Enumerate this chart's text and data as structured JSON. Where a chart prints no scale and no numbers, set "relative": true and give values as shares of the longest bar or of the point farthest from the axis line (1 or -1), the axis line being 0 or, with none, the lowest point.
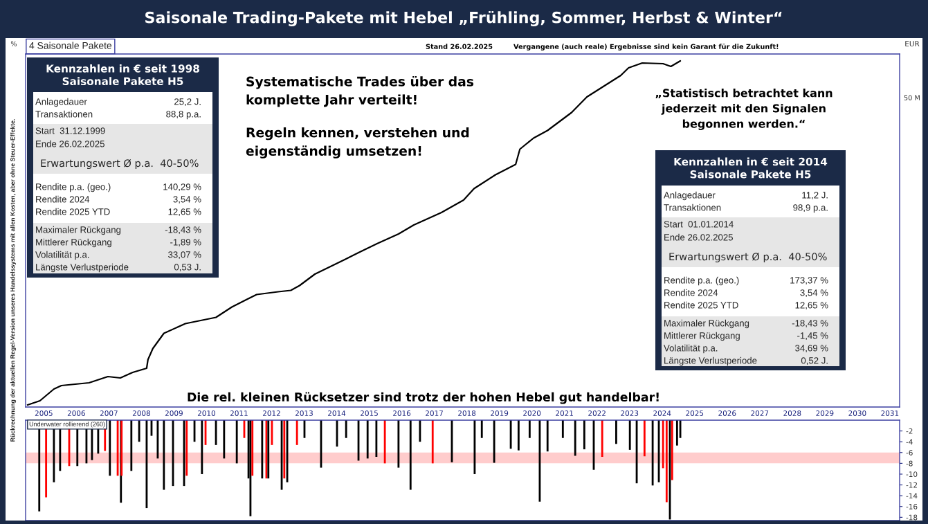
{
  "chart_data": [
    {
      "type": "line",
      "title": "Saisonale Trading-Pakete mit Hebel „Frühling, Sommer, Herbst & Winter“",
      "subtitle": "4 Saisonale Pakete",
      "ylabel": "Rückrechnung der aktuellen Regel-Version unseres Handelssystems mit allen Kosten, aber ohne Steuer-Effekte.",
      "relative": true,
      "tick_labels": "x",
      "xlim": [
        2004.94,
        2031.8
      ],
      "xticks": [
        {
          "value": 2005.5,
          "label": "2005"
        },
        {
          "value": 2006.5,
          "label": "2006"
        },
        {
          "value": 2007.5,
          "label": "2007"
        },
        {
          "value": 2008.5,
          "label": "2008"
        },
        {
          "value": 2009.5,
          "label": "2009"
        },
        {
          "value": 2010.5,
          "label": "2010"
        },
        {
          "value": 2011.5,
          "label": "2011"
        },
        {
          "value": 2012.5,
          "label": "2012"
        },
        {
          "value": 2013.5,
          "label": "2013"
        },
        {
          "value": 2014.5,
          "label": "2014"
        },
        {
          "value": 2015.5,
          "label": "2015"
        },
        {
          "value": 2016.5,
          "label": "2016"
        },
        {
          "value": 2017.5,
          "label": "2017"
        },
        {
          "value": 2018.5,
          "label": "2018"
        },
        {
          "value": 2019.5,
          "label": "2019"
        },
        {
          "value": 2020.5,
          "label": "2020"
        },
        {
          "value": 2021.5,
          "label": "2021"
        },
        {
          "value": 2022.5,
          "label": "2022"
        },
        {
          "value": 2023.5,
          "label": "2023"
        },
        {
          "value": 2024.5,
          "label": "2024"
        },
        {
          "value": 2025.5,
          "label": "2025"
        },
        {
          "value": 2026.5,
          "label": "2026"
        },
        {
          "value": 2027.5,
          "label": "2027"
        },
        {
          "value": 2028.5,
          "label": "2028"
        },
        {
          "value": 2029.5,
          "label": "2029"
        },
        {
          "value": 2030.5,
          "label": "2030"
        },
        {
          "value": 2031.5,
          "label": "2031"
        }
      ],
      "series": [
        {
          "color": "#000000",
          "x": [
            2005.0,
            2005.38,
            2005.81,
            2006.04,
            2006.89,
            2007.47,
            2007.85,
            2008.23,
            2008.66,
            2008.7,
            2008.85,
            2009.19,
            2009.85,
            2010.79,
            2011.28,
            2011.74,
            2012.04,
            2012.7,
            2013.09,
            2013.36,
            2013.83,
            2014.79,
            2015.17,
            2015.74,
            2016.4,
            2016.87,
            2017.72,
            2018.4,
            2018.72,
            2019.38,
            2020.0,
            2020.13,
            2020.55,
            2020.98,
            2021.72,
            2022.19,
            2022.66,
            2023.23,
            2023.47,
            2023.89,
            2024.53,
            2024.77,
            2025.06
          ],
          "values": [
            0.006,
            0.018,
            0.052,
            0.062,
            0.07,
            0.088,
            0.084,
            0.1,
            0.112,
            0.137,
            0.169,
            0.213,
            0.241,
            0.259,
            0.289,
            0.311,
            0.325,
            0.333,
            0.337,
            0.351,
            0.384,
            0.428,
            0.446,
            0.472,
            0.5,
            0.526,
            0.562,
            0.598,
            0.631,
            0.671,
            0.701,
            0.745,
            0.777,
            0.799,
            0.851,
            0.896,
            0.924,
            0.958,
            0.98,
            0.994,
            0.992,
            0.984,
            1.0
          ]
        }
      ],
      "annotations": [
        "Stand 26.02.2025",
        "Vergangene (auch reale) Ergebnisse sind kein Garant für die Zukunft!",
        "%",
        "EUR",
        "50 M",
        "Systematische Trades über das\nkomplette Jahr verteilt!",
        "Regeln kennen, verstehen und\neigenständig umsetzen!",
        "„Statistisch betrachtet kann\njederzeit mit den Signalen\nbegonnen werden.“",
        "Die rel. kleinen Rücksetzer sind trotz der hohen Hebel gut handelbar!",
        "Kennzahlen in € seit 1998\nSaisonale Pakete H5",
        "Anlagedauer",
        "25,2 J.",
        "Transaktionen",
        "88,8 p.a.",
        "Start  31.12.1999",
        "Ende 26.02.2025",
        "Erwartungswert Ø p.a.  40-50%",
        "Rendite p.a. (geo.)",
        "140,29 %",
        "Rendite 2024",
        "3,54 %",
        "Rendite 2025 YTD",
        "12,65 %",
        "Maximaler Rückgang",
        "-18,43 %",
        "Mittlerer Rückgang",
        "-1,89 %",
        "Volatilität p.a.",
        "33,07 %",
        "Längste Verlustperiode",
        "0,53 J.",
        "Kennzahlen in € seit 2014\nSaisonale Pakete H5",
        "Anlagedauer",
        "11,2 J.",
        "Transaktionen",
        "98,9 p.a.",
        "Start  01.01.2014",
        "Ende 26.02.2025",
        "Erwartungswert Ø p.a.  40-50%",
        "Rendite p.a. (geo.)",
        "173,37 %",
        "Rendite 2024",
        "3,54 %",
        "Rendite 2025 YTD",
        "12,65 %",
        "Maximaler Rückgang",
        "-18,43 %",
        "Mittlerer Rückgang",
        "-1,45 %",
        "Volatilität p.a.",
        "34,69 %",
        "Längste Verlustperiode",
        "0,52 J."
      ]
    },
    {
      "type": "bar",
      "tick_labels": "y",
      "xlim": [
        2004.94,
        2031.8
      ],
      "ylim": [
        -18.6,
        0
      ],
      "yticks": [
        -2,
        -4,
        -6,
        -8,
        -10,
        -12,
        -14,
        -16,
        -18
      ],
      "bands": [
        {
          "axis": "y",
          "from": -6,
          "to": -8,
          "color": "#ffcccc"
        }
      ],
      "annotations": [
        "Underwater rollierend (260)"
      ],
      "series": [
        {
          "x": [
            2005.36,
            2005.57,
            2005.81,
            2006.0,
            2006.28,
            2006.53,
            2006.81,
            2006.98,
            2007.17,
            2007.38,
            2007.53,
            2007.77,
            2007.87,
            2007.89,
            2008.19,
            2008.43,
            2008.66,
            2008.81,
            2009.0,
            2009.19,
            2009.47,
            2009.81,
            2009.89,
            2010.13,
            2010.36,
            2010.47,
            2010.79,
            2011.04,
            2011.43,
            2011.66,
            2011.79,
            2011.85,
            2011.91,
            2012.21,
            2012.34,
            2012.4,
            2012.51,
            2012.81,
            2012.89,
            2012.98,
            2013.28,
            2013.51,
            2014.02,
            2014.51,
            2014.79,
            2015.17,
            2015.45,
            2015.72,
            2015.98,
            2016.4,
            2016.77,
            2017.06,
            2017.45,
            2018.04,
            2018.74,
            2018.96,
            2019.34,
            2019.85,
            2020.09,
            2020.43,
            2020.74,
            2020.98,
            2021.45,
            2021.83,
            2022.11,
            2022.4,
            2022.66,
            2023.09,
            2023.51,
            2023.72,
            2023.96,
            2024.21,
            2024.4,
            2024.53,
            2024.64,
            2024.74,
            2024.81,
            2024.96,
            2025.06
          ],
          "values": [
            -16.9,
            -14.3,
            -11.5,
            -9.4,
            -8.5,
            -8.5,
            -8.0,
            -7.4,
            -6.2,
            -5.7,
            -10.3,
            -10.3,
            -15.3,
            -10.3,
            -9.4,
            -4.0,
            -16.3,
            -2.9,
            -7.1,
            -12.9,
            -12.2,
            -12.2,
            -10.3,
            -4.0,
            -10.0,
            -4.6,
            -4.6,
            -7.1,
            -8.0,
            -3.3,
            -10.8,
            -17.8,
            -10.3,
            -10.8,
            -10.8,
            -10.8,
            -4.6,
            -12.9,
            -10.8,
            -11.5,
            -4.6,
            -3.3,
            -8.8,
            -4.9,
            -3.3,
            -7.5,
            -7.1,
            -6.8,
            -8.0,
            -8.8,
            -12.9,
            -4.0,
            -8.0,
            -7.8,
            -10.0,
            -3.3,
            -7.9,
            -5.3,
            -5.6,
            -3.3,
            -15.1,
            -5.8,
            -3.3,
            -6.6,
            -5.4,
            -9.2,
            -6.8,
            -4.4,
            -5.5,
            -11.7,
            -6.7,
            -12.1,
            -11.5,
            -8.9,
            -15.2,
            -18.4,
            -11.1,
            -4.7,
            -3.3
          ],
          "colors": [
            "#000000",
            "#ff0000",
            "#000000",
            "#000000",
            "#ff0000",
            "#000000",
            "#000000",
            "#000000",
            "#000000",
            "#ff0000",
            "#000000",
            "#ff0000",
            "#000000",
            "#ff0000",
            "#000000",
            "#000000",
            "#000000",
            "#000000",
            "#000000",
            "#000000",
            "#000000",
            "#000000",
            "#ff0000",
            "#000000",
            "#000000",
            "#ff0000",
            "#000000",
            "#000000",
            "#000000",
            "#ff0000",
            "#000000",
            "#000000",
            "#ff0000",
            "#000000",
            "#ff0000",
            "#000000",
            "#ff0000",
            "#000000",
            "#ff0000",
            "#000000",
            "#ff0000",
            "#000000",
            "#000000",
            "#000000",
            "#000000",
            "#000000",
            "#000000",
            "#000000",
            "#ff0000",
            "#000000",
            "#000000",
            "#000000",
            "#ff0000",
            "#000000",
            "#000000",
            "#000000",
            "#000000",
            "#000000",
            "#000000",
            "#000000",
            "#000000",
            "#000000",
            "#000000",
            "#000000",
            "#000000",
            "#000000",
            "#ff0000",
            "#000000",
            "#000000",
            "#000000",
            "#ff0000",
            "#000000",
            "#000000",
            "#ff0000",
            "#ff0000",
            "#000000",
            "#ff0000",
            "#000000",
            "#000000"
          ]
        }
      ]
    }
  ]
}
